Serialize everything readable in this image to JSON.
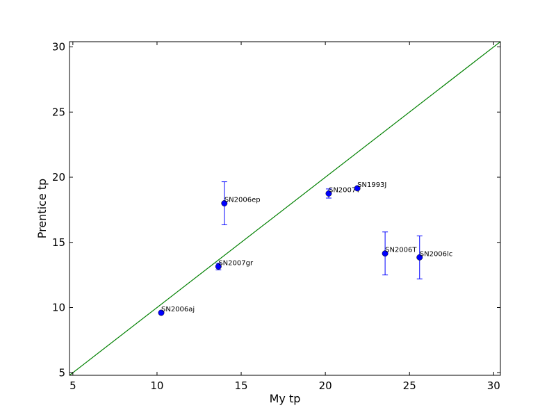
{
  "chart_data": {
    "type": "scatter",
    "title": "",
    "xlabel": "My tp",
    "ylabel": "Prentice tp",
    "xlim": [
      4.8,
      30.4
    ],
    "ylim": [
      4.8,
      30.4
    ],
    "xticks": [
      5,
      10,
      15,
      20,
      25,
      30
    ],
    "yticks": [
      5,
      10,
      15,
      20,
      25,
      30
    ],
    "grid": false,
    "points": [
      {
        "name": "SN2006aj",
        "x": 10.25,
        "y": 9.6,
        "yerr": 0.05
      },
      {
        "name": "SN2007gr",
        "x": 13.65,
        "y": 13.15,
        "yerr": 0.25
      },
      {
        "name": "SN2006ep",
        "x": 14.0,
        "y": 18.0,
        "yerr": 1.65
      },
      {
        "name": "SN2007Y",
        "x": 20.2,
        "y": 18.75,
        "yerr": 0.35
      },
      {
        "name": "SN1993J",
        "x": 21.9,
        "y": 19.15,
        "yerr": 0.15
      },
      {
        "name": "SN2006T",
        "x": 23.55,
        "y": 14.15,
        "yerr": 1.65
      },
      {
        "name": "SN2006lc",
        "x": 25.6,
        "y": 13.85,
        "yerr": 1.65
      }
    ],
    "reference_line": {
      "label": "y = x",
      "x": [
        4.8,
        30.4
      ],
      "y": [
        4.8,
        30.4
      ]
    },
    "colors": {
      "points": "#0000ff",
      "errorbars": "#0000ff",
      "line": "#008000",
      "axes": "#000000"
    }
  }
}
